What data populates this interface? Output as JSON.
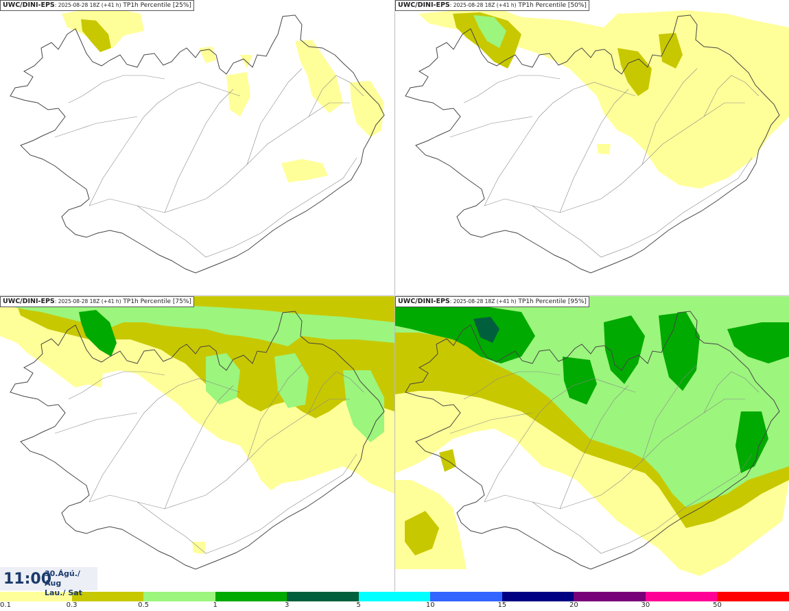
{
  "panels": [
    {
      "model": "UWC/DINI-EPS",
      "run": ": 2025-08-28 18Z (+41 h)",
      "param": " TP1h Percentile [25%]",
      "percentile": 25
    },
    {
      "model": "UWC/DINI-EPS",
      "run": ": 2025-08-28 18Z (+41 h)",
      "param": " TP1h Percentile [50%]",
      "percentile": 50
    },
    {
      "model": "UWC/DINI-EPS",
      "run": ": 2025-08-28 18Z (+41 h)",
      "param": " TP1h Percentile [75%]",
      "percentile": 75
    },
    {
      "model": "UWC/DINI-EPS",
      "run": ": 2025-08-28 18Z (+41 h)",
      "param": " TP1h Percentile [95%]",
      "percentile": 95
    }
  ],
  "valid_time": {
    "time": "11:00",
    "date_line1": "30.Ágú./ Aug",
    "date_line2": "Lau./ Sat"
  },
  "legend": {
    "colors": [
      "#ffff99",
      "#c8c800",
      "#9cf57d",
      "#00aa00",
      "#005f3c",
      "#00ffff",
      "#3264ff",
      "#000082",
      "#780078",
      "#ff0096",
      "#ff0000"
    ],
    "labels": [
      "0.1",
      "0.3",
      "0.5",
      "1",
      "3",
      "5",
      "10",
      "15",
      "20",
      "30",
      "50"
    ]
  },
  "map": {
    "region": "Iceland",
    "coastline_color": "#444444",
    "field_colors": {
      "light": "#ffff99",
      "medium": "#c8c800",
      "green": "#9cf57d",
      "dark": "#00aa00",
      "darkest": "#005f3c"
    }
  }
}
